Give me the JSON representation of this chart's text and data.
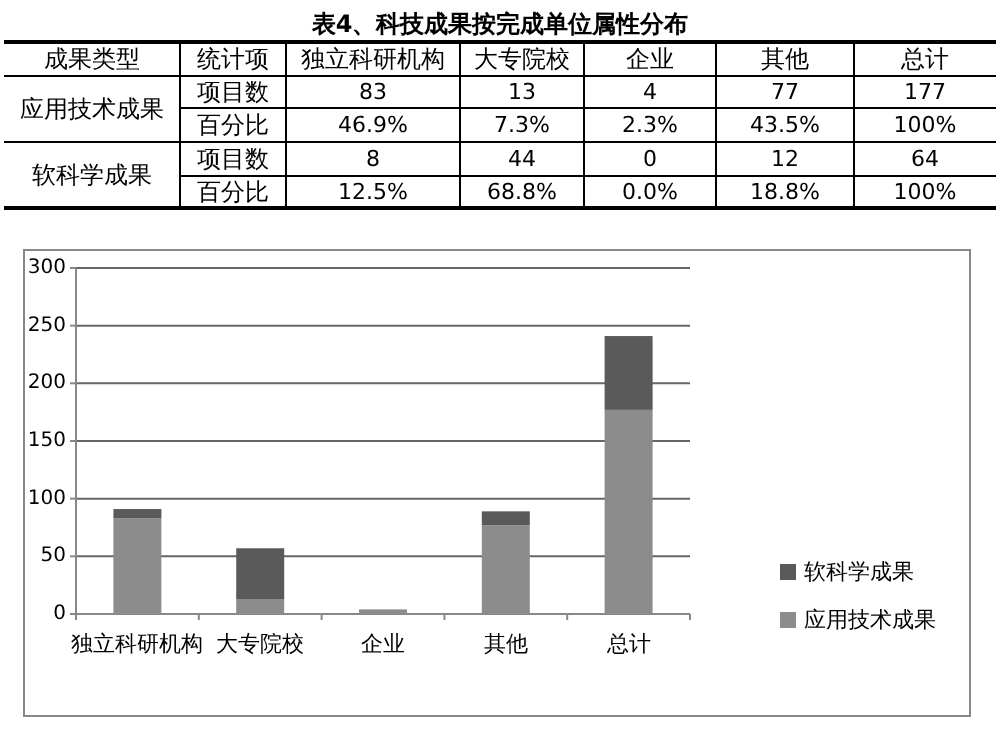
{
  "chart_data": [
    {
      "type": "other",
      "title": "表4、科技成果按完成单位属性分布",
      "categories": [
        "独立科研机构",
        "大专院校",
        "企业",
        "其他",
        "总计"
      ],
      "annotations": [
        "成果类型",
        "统计项",
        "应用技术成果",
        "项目数",
        "83",
        "13",
        "4",
        "77",
        "177",
        "百分比",
        "46.9%",
        "7.3%",
        "2.3%",
        "43.5%",
        "100%",
        "软科学成果",
        "项目数",
        "8",
        "44",
        "0",
        "12",
        "64",
        "百分比",
        "12.5%",
        "68.8%",
        "0.0%",
        "18.8%",
        "100%"
      ]
    },
    {
      "type": "bar",
      "categories": [
        "独立科研机构",
        "大专院校",
        "企业",
        "其他",
        "总计"
      ],
      "series": [
        {
          "name": "应用技术成果",
          "color": "#8c8c8c",
          "values": [
            83,
            13,
            4,
            77,
            177
          ]
        },
        {
          "name": "软科学成果",
          "color": "#5a5a5a",
          "values": [
            8,
            44,
            0,
            12,
            64
          ]
        }
      ],
      "stacked": true,
      "ylim": [
        0,
        300
      ],
      "yticks": [
        0,
        50,
        100,
        150,
        200,
        250,
        300
      ],
      "grid": "y",
      "legend": "right"
    }
  ]
}
